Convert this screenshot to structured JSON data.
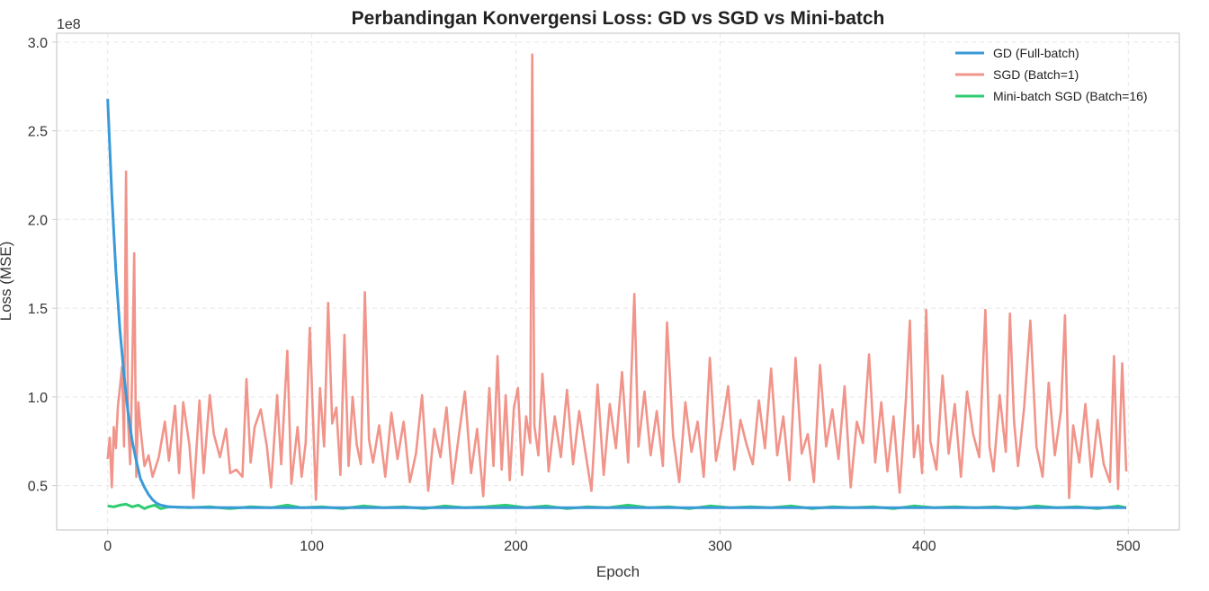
{
  "chart_data": {
    "type": "line",
    "title": "Perbandingan Konvergensi Loss: GD vs SGD vs Mini-batch",
    "xlabel": "Epoch",
    "ylabel": "Loss (MSE)",
    "y_offset_label": "1e8",
    "xlim": [
      -25,
      525
    ],
    "ylim": [
      0.25,
      3.05
    ],
    "x_ticks": [
      0,
      100,
      200,
      300,
      400,
      500
    ],
    "y_ticks": [
      0.5,
      1.0,
      1.5,
      2.0,
      2.5,
      3.0
    ],
    "x_tick_labels": [
      "0",
      "100",
      "200",
      "300",
      "400",
      "500"
    ],
    "y_tick_labels": [
      "0.5",
      "1.0",
      "1.5",
      "2.0",
      "2.5",
      "3.0"
    ],
    "grid": true,
    "legend_position": "top-right",
    "series": [
      {
        "name": "GD (Full-batch)",
        "color": "#3a9ad9",
        "x": [
          0,
          2,
          4,
          6,
          8,
          10,
          12,
          14,
          16,
          18,
          20,
          22,
          24,
          26,
          28,
          30,
          35,
          40,
          50,
          75,
          100,
          150,
          200,
          250,
          300,
          350,
          400,
          450,
          499
        ],
        "y": [
          2.68,
          2.14,
          1.71,
          1.38,
          1.12,
          0.91,
          0.75,
          0.64,
          0.54,
          0.49,
          0.45,
          0.42,
          0.4,
          0.39,
          0.385,
          0.38,
          0.378,
          0.377,
          0.376,
          0.375,
          0.375,
          0.375,
          0.375,
          0.375,
          0.375,
          0.375,
          0.375,
          0.375,
          0.375
        ]
      },
      {
        "name": "SGD (Batch=1)",
        "color": "#f1948a",
        "x": [
          0,
          1,
          2,
          3,
          4,
          5,
          6,
          7,
          8,
          9,
          10,
          11,
          12,
          13,
          14,
          15,
          16,
          18,
          20,
          22,
          25,
          28,
          30,
          33,
          35,
          37,
          40,
          42,
          45,
          47,
          50,
          52,
          55,
          58,
          60,
          63,
          66,
          68,
          70,
          72,
          75,
          78,
          80,
          83,
          85,
          88,
          90,
          93,
          95,
          97,
          99,
          102,
          104,
          106,
          108,
          110,
          112,
          114,
          116,
          118,
          120,
          122,
          124,
          126,
          128,
          130,
          133,
          136,
          139,
          142,
          145,
          148,
          151,
          154,
          157,
          160,
          163,
          166,
          169,
          172,
          175,
          178,
          181,
          184,
          187,
          189,
          191,
          193,
          195,
          197,
          199,
          201,
          203,
          205,
          207,
          208,
          209,
          211,
          213,
          216,
          219,
          222,
          225,
          228,
          231,
          234,
          237,
          240,
          243,
          246,
          249,
          252,
          255,
          258,
          260,
          263,
          266,
          269,
          272,
          274,
          277,
          280,
          283,
          286,
          289,
          292,
          295,
          298,
          301,
          304,
          307,
          310,
          313,
          316,
          319,
          322,
          325,
          328,
          331,
          334,
          337,
          340,
          343,
          346,
          349,
          352,
          355,
          358,
          361,
          364,
          367,
          370,
          373,
          376,
          379,
          382,
          385,
          388,
          391,
          393,
          395,
          397,
          399,
          401,
          403,
          406,
          409,
          412,
          415,
          418,
          421,
          424,
          427,
          430,
          432,
          434,
          437,
          440,
          442,
          444,
          446,
          449,
          452,
          455,
          458,
          461,
          464,
          467,
          469,
          471,
          473,
          476,
          479,
          482,
          485,
          488,
          491,
          493,
          495,
          497,
          499
        ],
        "y": [
          0.65,
          0.77,
          0.49,
          0.83,
          0.71,
          0.95,
          1.05,
          1.17,
          0.72,
          2.27,
          0.86,
          0.62,
          1.15,
          1.81,
          0.55,
          0.97,
          0.83,
          0.61,
          0.67,
          0.55,
          0.66,
          0.86,
          0.64,
          0.95,
          0.57,
          0.97,
          0.73,
          0.43,
          0.98,
          0.57,
          1.01,
          0.79,
          0.66,
          0.82,
          0.57,
          0.59,
          0.55,
          1.1,
          0.63,
          0.83,
          0.93,
          0.72,
          0.49,
          1.01,
          0.62,
          1.26,
          0.51,
          0.83,
          0.55,
          0.74,
          1.39,
          0.42,
          1.05,
          0.72,
          1.53,
          0.85,
          0.94,
          0.56,
          1.35,
          0.61,
          1.0,
          0.73,
          0.62,
          1.59,
          0.76,
          0.63,
          0.84,
          0.55,
          0.91,
          0.65,
          0.86,
          0.52,
          0.68,
          1.01,
          0.47,
          0.82,
          0.66,
          0.94,
          0.51,
          0.78,
          1.03,
          0.57,
          0.82,
          0.44,
          1.05,
          0.61,
          1.23,
          0.59,
          1.01,
          0.53,
          0.94,
          1.05,
          0.56,
          0.89,
          0.74,
          2.93,
          0.84,
          0.67,
          1.13,
          0.58,
          0.89,
          0.66,
          1.04,
          0.62,
          0.92,
          0.69,
          0.47,
          1.07,
          0.56,
          0.96,
          0.71,
          1.14,
          0.63,
          1.58,
          0.72,
          1.03,
          0.67,
          0.92,
          0.61,
          1.42,
          0.78,
          0.52,
          0.97,
          0.69,
          0.86,
          0.55,
          1.22,
          0.64,
          0.83,
          1.06,
          0.59,
          0.87,
          0.73,
          0.62,
          0.98,
          0.71,
          1.16,
          0.67,
          0.89,
          0.53,
          1.22,
          0.68,
          0.79,
          0.52,
          1.18,
          0.72,
          0.93,
          0.65,
          1.06,
          0.49,
          0.86,
          0.74,
          1.24,
          0.63,
          0.97,
          0.58,
          0.89,
          0.46,
          0.97,
          1.43,
          0.66,
          0.84,
          0.57,
          1.49,
          0.75,
          0.59,
          1.12,
          0.68,
          0.96,
          0.55,
          1.03,
          0.79,
          0.66,
          1.49,
          0.72,
          0.58,
          1.01,
          0.69,
          1.47,
          0.87,
          0.61,
          0.94,
          1.43,
          0.72,
          0.55,
          1.08,
          0.67,
          0.92,
          1.46,
          0.43,
          0.84,
          0.63,
          0.96,
          0.55,
          0.87,
          0.62,
          0.52,
          1.23,
          0.48,
          1.19,
          0.58
        ]
      },
      {
        "name": "Mini-batch SGD (Batch=16)",
        "color": "#2ecc71",
        "x": [
          0,
          3,
          6,
          9,
          12,
          15,
          18,
          20,
          23,
          26,
          30,
          40,
          50,
          60,
          70,
          80,
          88,
          95,
          105,
          115,
          125,
          135,
          145,
          155,
          165,
          175,
          185,
          195,
          205,
          215,
          225,
          235,
          245,
          255,
          265,
          275,
          285,
          295,
          305,
          315,
          325,
          335,
          345,
          355,
          365,
          375,
          385,
          395,
          405,
          415,
          425,
          435,
          445,
          455,
          465,
          475,
          485,
          495,
          499
        ],
        "y": [
          0.385,
          0.38,
          0.39,
          0.395,
          0.38,
          0.39,
          0.37,
          0.38,
          0.39,
          0.37,
          0.38,
          0.375,
          0.38,
          0.37,
          0.38,
          0.375,
          0.39,
          0.375,
          0.38,
          0.37,
          0.385,
          0.375,
          0.38,
          0.37,
          0.385,
          0.375,
          0.38,
          0.39,
          0.375,
          0.385,
          0.37,
          0.38,
          0.375,
          0.39,
          0.375,
          0.38,
          0.37,
          0.385,
          0.375,
          0.38,
          0.375,
          0.385,
          0.37,
          0.38,
          0.375,
          0.38,
          0.37,
          0.385,
          0.375,
          0.38,
          0.375,
          0.38,
          0.37,
          0.385,
          0.375,
          0.38,
          0.37,
          0.385,
          0.375
        ]
      }
    ]
  }
}
